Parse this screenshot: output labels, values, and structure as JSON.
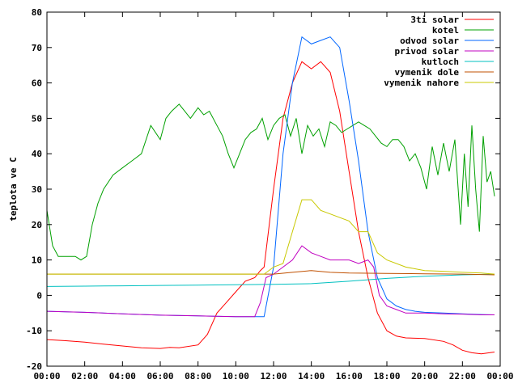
{
  "chart_data": {
    "type": "line",
    "title": "",
    "xlabel": "",
    "ylabel": "teplota ve C",
    "xlim": [
      0,
      24
    ],
    "ylim": [
      -20,
      80
    ],
    "x_ticks": [
      "00:00",
      "02:00",
      "04:00",
      "06:00",
      "08:00",
      "10:00",
      "12:00",
      "14:00",
      "16:00",
      "18:00",
      "20:00",
      "22:00",
      "00:00"
    ],
    "y_ticks": [
      -20,
      -10,
      0,
      10,
      20,
      30,
      40,
      50,
      60,
      70,
      80
    ],
    "grid": false,
    "legend_position": "top-right",
    "series": [
      {
        "name": "3ti solar",
        "color": "#ff0000",
        "x": [
          0,
          1,
          2,
          3,
          4,
          5,
          6,
          6.5,
          7,
          8,
          8.5,
          9,
          9.5,
          10,
          10.5,
          11,
          11.3,
          11.5,
          12,
          12.5,
          13,
          13.5,
          14,
          14.5,
          15,
          15.5,
          16,
          16.5,
          17,
          17.5,
          18,
          18.5,
          19,
          20,
          21,
          21.5,
          22,
          22.5,
          23,
          23.7
        ],
        "y": [
          -12.5,
          -12.8,
          -13.2,
          -13.8,
          -14.3,
          -14.8,
          -15,
          -14.7,
          -14.8,
          -14,
          -11,
          -5,
          -2,
          1,
          4,
          5,
          7,
          8,
          30,
          50,
          60,
          66,
          64,
          66,
          63,
          52,
          35,
          18,
          5,
          -5,
          -10,
          -11.5,
          -12,
          -12.2,
          -13,
          -14,
          -15.5,
          -16.2,
          -16.5,
          -16
        ]
      },
      {
        "name": "kotel",
        "color": "#00a000",
        "x": [
          0,
          0.3,
          0.6,
          0.9,
          1.2,
          1.5,
          1.8,
          2.1,
          2.4,
          2.7,
          3,
          3.5,
          4,
          4.5,
          5,
          5.5,
          6,
          6.3,
          6.6,
          7,
          7.3,
          7.6,
          8,
          8.3,
          8.6,
          9,
          9.3,
          9.6,
          9.9,
          10.2,
          10.5,
          10.8,
          11.1,
          11.4,
          11.7,
          12,
          12.3,
          12.6,
          12.9,
          13.2,
          13.5,
          13.8,
          14.1,
          14.4,
          14.7,
          15,
          15.3,
          15.6,
          15.9,
          16.2,
          16.5,
          16.8,
          17.1,
          17.4,
          17.7,
          18,
          18.3,
          18.6,
          18.9,
          19.2,
          19.5,
          19.8,
          20.1,
          20.4,
          20.7,
          21,
          21.3,
          21.6,
          21.9,
          22.1,
          22.3,
          22.5,
          22.7,
          22.9,
          23.1,
          23.3,
          23.5,
          23.7
        ],
        "y": [
          24,
          14,
          11,
          11,
          11,
          11,
          10,
          11,
          20,
          26,
          30,
          34,
          36,
          38,
          40,
          48,
          44,
          50,
          52,
          54,
          52,
          50,
          53,
          51,
          52,
          48,
          45,
          40,
          36,
          40,
          44,
          46,
          47,
          50,
          44,
          48,
          50,
          51,
          45,
          50,
          40,
          48,
          45,
          47,
          42,
          49,
          48,
          46,
          47,
          48,
          49,
          48,
          47,
          45,
          43,
          42,
          44,
          44,
          42,
          38,
          40,
          36,
          30,
          42,
          34,
          43,
          35,
          44,
          20,
          40,
          25,
          48,
          30,
          18,
          45,
          32,
          35,
          28
        ]
      },
      {
        "name": "odvod solar",
        "color": "#0066ff",
        "x": [
          0,
          2,
          4,
          6,
          8,
          10,
          11,
          11.5,
          12,
          12.5,
          13,
          13.5,
          14,
          14.5,
          15,
          15.5,
          16,
          16.5,
          17,
          17.5,
          18,
          18.5,
          19,
          19.5,
          20,
          21,
          22,
          23,
          23.7
        ],
        "y": [
          -4.5,
          -4.8,
          -5.2,
          -5.6,
          -5.8,
          -6,
          -6,
          -6,
          8,
          40,
          60,
          73,
          71,
          72,
          73,
          70,
          55,
          38,
          18,
          5,
          -1,
          -3,
          -4,
          -4.5,
          -4.8,
          -5,
          -5.2,
          -5.4,
          -5.5
        ]
      },
      {
        "name": "privod solar",
        "color": "#c000c0",
        "x": [
          0,
          2,
          4,
          6,
          8,
          10,
          11,
          11.3,
          11.6,
          12,
          12.5,
          13,
          13.5,
          14,
          14.5,
          15,
          15.5,
          16,
          16.5,
          17,
          17.3,
          17.6,
          18,
          18.5,
          19,
          20,
          21,
          22,
          23,
          23.7
        ],
        "y": [
          -4.5,
          -4.8,
          -5.2,
          -5.6,
          -5.8,
          -6,
          -6,
          -2,
          5,
          6,
          8,
          10,
          14,
          12,
          11,
          10,
          10,
          10,
          9,
          10,
          8,
          0,
          -3,
          -4,
          -5,
          -5,
          -5.2,
          -5.3,
          -5.5,
          -5.5
        ]
      },
      {
        "name": "kutloch",
        "color": "#00c0c0",
        "x": [
          0,
          2,
          4,
          6,
          8,
          10,
          12,
          14,
          16,
          18,
          20,
          22,
          23.7
        ],
        "y": [
          2.5,
          2.6,
          2.7,
          2.8,
          2.9,
          3,
          3.1,
          3.3,
          4,
          4.8,
          5.4,
          5.8,
          6
        ]
      },
      {
        "name": "vymenik dole",
        "color": "#c05000",
        "x": [
          0,
          2,
          4,
          6,
          8,
          10,
          11,
          12,
          13,
          14,
          15,
          16,
          18,
          20,
          22,
          23.7
        ],
        "y": [
          6,
          6,
          6,
          6,
          6,
          6,
          6,
          6,
          6.5,
          7,
          6.5,
          6.3,
          6.2,
          6.1,
          6,
          5.8
        ]
      },
      {
        "name": "vymenik nahore",
        "color": "#c8c800",
        "x": [
          0,
          2,
          4,
          6,
          8,
          10,
          11,
          11.5,
          12,
          12.5,
          13,
          13.5,
          14,
          14.5,
          15,
          16,
          16.5,
          17,
          17.5,
          18,
          19,
          20,
          21,
          22,
          23,
          23.7
        ],
        "y": [
          6,
          6,
          6,
          6,
          6,
          6,
          6,
          6,
          8,
          9,
          18,
          27,
          27,
          24,
          23,
          21,
          18,
          18,
          12,
          10,
          8,
          7,
          6.8,
          6.5,
          6.3,
          6
        ]
      }
    ]
  }
}
